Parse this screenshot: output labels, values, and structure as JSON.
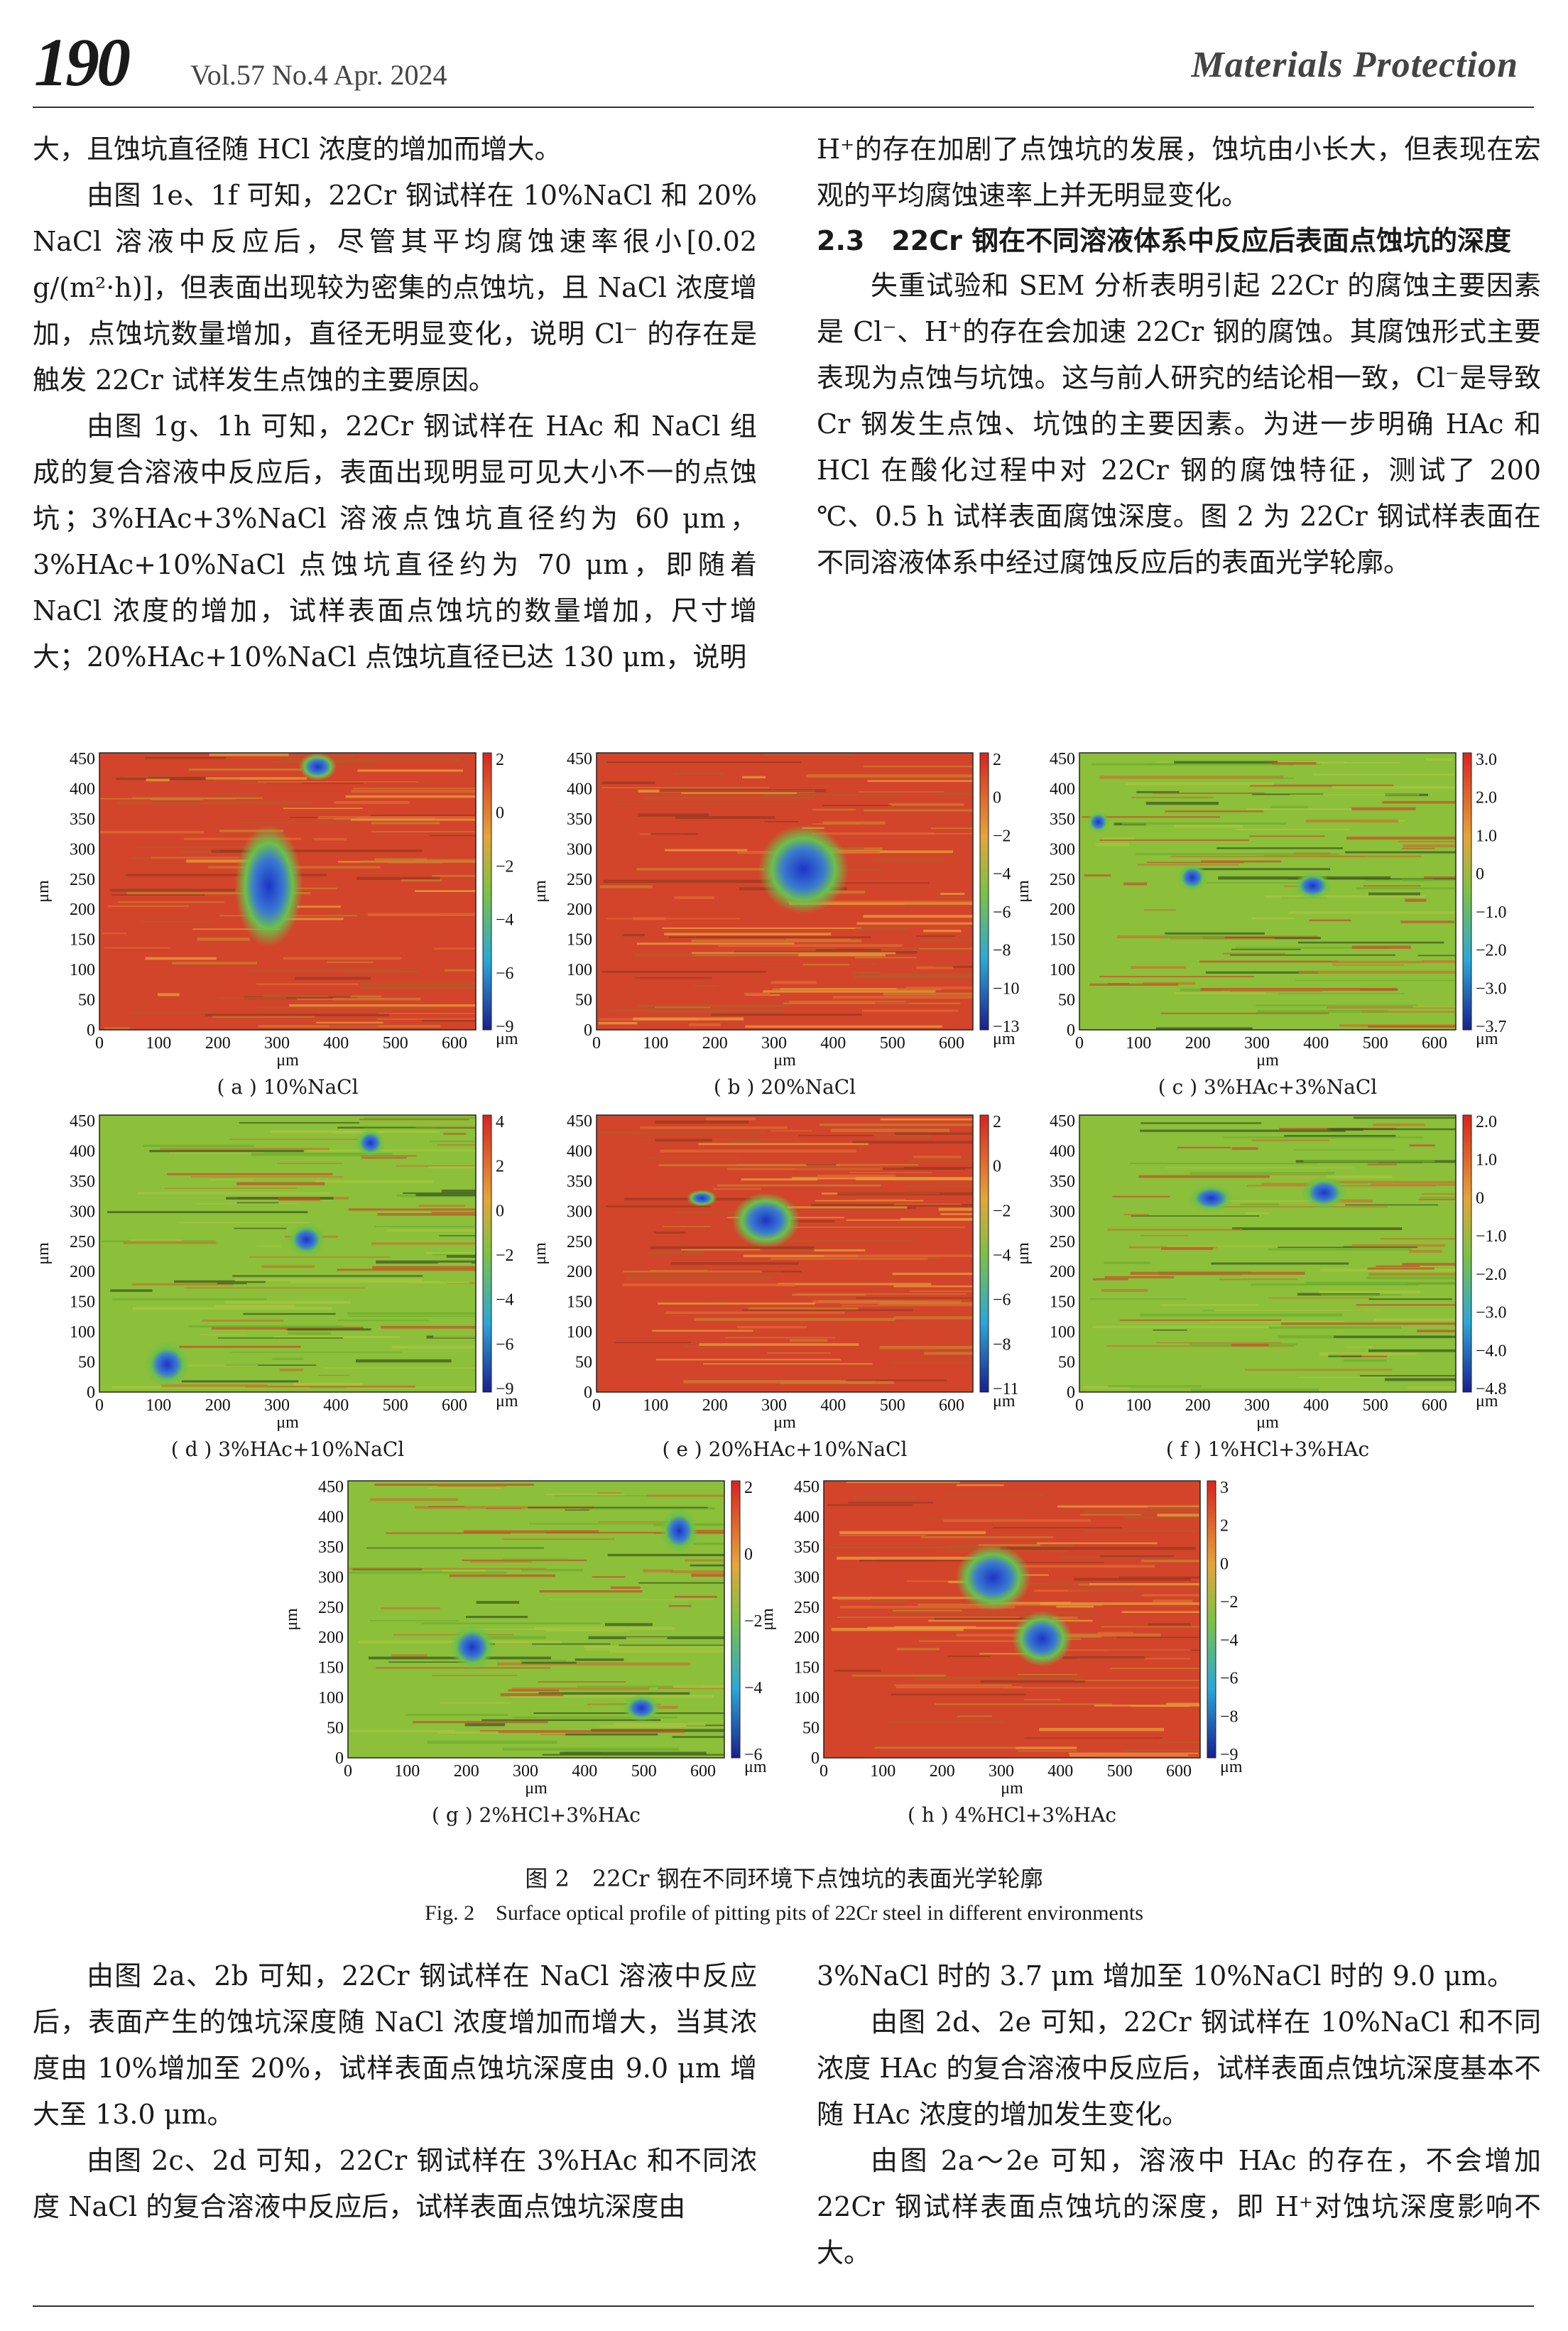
{
  "header": {
    "page_number": "190",
    "volume": "Vol.57  No.4  Apr. 2024",
    "journal": "Materials Protection"
  },
  "left_top": [
    "大，且蚀坑直径随 HCl 浓度的增加而增大。",
    "由图 1e、1f 可知，22Cr 钢试样在 10%NaCl 和 20% NaCl 溶液中反应后，尽管其平均腐蚀速率很小[0.02 g/(m²·h)]，但表面出现较为密集的点蚀坑，且 NaCl 浓度增加，点蚀坑数量增加，直径无明显变化，说明 Cl⁻ 的存在是触发 22Cr 试样发生点蚀的主要原因。",
    "由图 1g、1h 可知，22Cr 钢试样在 HAc 和 NaCl 组成的复合溶液中反应后，表面出现明显可见大小不一的点蚀坑；3%HAc+3%NaCl 溶液点蚀坑直径约为 60 μm，3%HAc+10%NaCl 点蚀坑直径约为 70 μm，即随着 NaCl 浓度的增加，试样表面点蚀坑的数量增加，尺寸增大；20%HAc+10%NaCl 点蚀坑直径已达 130 μm，说明"
  ],
  "right_top": {
    "para1": "H⁺的存在加剧了点蚀坑的发展，蚀坑由小长大，但表现在宏观的平均腐蚀速率上并无明显变化。",
    "section_title": "2.3　22Cr 钢在不同溶液体系中反应后表面点蚀坑的深度",
    "para2": "失重试验和 SEM 分析表明引起 22Cr 的腐蚀主要因素是 Cl⁻、H⁺的存在会加速 22Cr 钢的腐蚀。其腐蚀形式主要表现为点蚀与坑蚀。这与前人研究的结论相一致，Cl⁻是导致 Cr 钢发生点蚀、坑蚀的主要因素。为进一步明确 HAc 和 HCl 在酸化过程中对 22Cr 钢的腐蚀特征，测试了 200 ℃、0.5 h 试样表面腐蚀深度。图 2 为 22Cr 钢试样表面在不同溶液体系中经过腐蚀反应后的表面光学轮廓。"
  },
  "figure": {
    "caption_cn": "图 2　22Cr 钢在不同环境下点蚀坑的表面光学轮廓",
    "caption_en": "Fig. 2　Surface optical profile of pitting pits of 22Cr steel in different environments",
    "axis_unit": "μm",
    "x_ticks": [
      "0",
      "100",
      "200",
      "300",
      "400",
      "500",
      "600"
    ],
    "y_ticks": [
      "450",
      "400",
      "350",
      "300",
      "250",
      "200",
      "150",
      "100",
      "50",
      "0"
    ],
    "panels": [
      {
        "label": "( a ) 10%NaCl",
        "cbar": [
          "2",
          "0",
          "−2",
          "−4",
          "−6",
          "−9"
        ]
      },
      {
        "label": "( b ) 20%NaCl",
        "cbar": [
          "2",
          "0",
          "−2",
          "−4",
          "−6",
          "−8",
          "−10",
          "−13"
        ]
      },
      {
        "label": "( c ) 3%HAc+3%NaCl",
        "cbar": [
          "3.0",
          "2.0",
          "1.0",
          "0",
          "−1.0",
          "−2.0",
          "−3.0",
          "−3.7"
        ]
      },
      {
        "label": "( d ) 3%HAc+10%NaCl",
        "cbar": [
          "4",
          "2",
          "0",
          "−2",
          "−4",
          "−6",
          "−9"
        ]
      },
      {
        "label": "( e ) 20%HAc+10%NaCl",
        "cbar": [
          "2",
          "0",
          "−2",
          "−4",
          "−6",
          "−8",
          "−11"
        ]
      },
      {
        "label": "( f ) 1%HCl+3%HAc",
        "cbar": [
          "2.0",
          "1.0",
          "0",
          "−1.0",
          "−2.0",
          "−3.0",
          "−4.0",
          "−4.8"
        ]
      },
      {
        "label": "( g ) 2%HCl+3%HAc",
        "cbar": [
          "2",
          "0",
          "−2",
          "−4",
          "−6"
        ]
      },
      {
        "label": "( h ) 4%HCl+3%HAc",
        "cbar": [
          "3",
          "2",
          "0",
          "−2",
          "−4",
          "−6",
          "−8",
          "−9"
        ]
      }
    ]
  },
  "left_bot": [
    "由图 2a、2b 可知，22Cr 钢试样在 NaCl 溶液中反应后，表面产生的蚀坑深度随 NaCl 浓度增加而增大，当其浓度由 10%增加至 20%，试样表面点蚀坑深度由 9.0 μm 增大至 13.0 μm。",
    "由图 2c、2d 可知，22Cr 钢试样在 3%HAc 和不同浓度 NaCl 的复合溶液中反应后，试样表面点蚀坑深度由"
  ],
  "right_bot": [
    "3%NaCl 时的 3.7 μm 增加至 10%NaCl 时的 9.0 μm。",
    "由图 2d、2e 可知，22Cr 钢试样在 10%NaCl 和不同浓度 HAc 的复合溶液中反应后，试样表面点蚀坑深度基本不随 HAc 浓度的增加发生变化。",
    "由图 2a～2e 可知，溶液中 HAc 的存在，不会增加 22Cr 钢试样表面点蚀坑的深度，即 H⁺对蚀坑深度影响不大。"
  ]
}
